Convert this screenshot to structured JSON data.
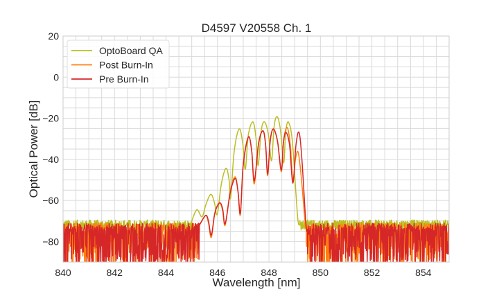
{
  "chart_data": {
    "type": "line",
    "title": "D4597 V20558 Ch. 1",
    "xlabel": "Wavelength [nm]",
    "ylabel": "Optical Power [dB]",
    "xlim": [
      840,
      855
    ],
    "ylim": [
      -90,
      20
    ],
    "xticks": [
      840,
      842,
      844,
      846,
      848,
      850,
      852,
      854
    ],
    "xtick_labels": [
      "840",
      "842",
      "844",
      "846",
      "848",
      "850",
      "852",
      "854"
    ],
    "yticks": [
      20,
      0,
      -20,
      -40,
      -60,
      -80
    ],
    "ytick_labels": [
      "20",
      "0",
      "−20",
      "−40",
      "−60",
      "−80"
    ],
    "minor_x_step": 0.5,
    "minor_y_step": 5,
    "grid": true,
    "legend_position": "top-left",
    "series": [
      {
        "name": "OptoBoard QA",
        "color": "#bcbd22",
        "noise_floor": {
          "level": -72,
          "spread": 2.5,
          "dip_prob": 0.03,
          "dip_depth": 8
        },
        "signal_range": [
          845.0,
          849.2
        ],
        "points": [
          [
            845.0,
            -70
          ],
          [
            845.2,
            -64.5
          ],
          [
            845.4,
            -68
          ],
          [
            845.55,
            -62
          ],
          [
            845.74,
            -57
          ],
          [
            845.88,
            -61
          ],
          [
            845.99,
            -66.8
          ],
          [
            846.15,
            -52
          ],
          [
            846.33,
            -44.3
          ],
          [
            846.45,
            -50
          ],
          [
            846.51,
            -58.9
          ],
          [
            846.65,
            -36
          ],
          [
            846.84,
            -25.2
          ],
          [
            846.98,
            -32
          ],
          [
            847.08,
            -44.9
          ],
          [
            847.2,
            -28
          ],
          [
            847.38,
            -21.8
          ],
          [
            847.5,
            -30
          ],
          [
            847.58,
            -43
          ],
          [
            847.7,
            -26
          ],
          [
            847.83,
            -21.8
          ],
          [
            847.98,
            -28
          ],
          [
            848.1,
            -40.7
          ],
          [
            848.2,
            -24
          ],
          [
            848.32,
            -19.2
          ],
          [
            848.45,
            -26
          ],
          [
            848.57,
            -41.8
          ],
          [
            848.65,
            -27
          ],
          [
            848.75,
            -21.8
          ],
          [
            848.9,
            -30
          ],
          [
            849.04,
            -55
          ],
          [
            849.13,
            -70
          ],
          [
            849.2,
            -72
          ]
        ]
      },
      {
        "name": "Post Burn-In",
        "color": "#ff7f0e",
        "noise_floor": {
          "level": -73,
          "spread": 2,
          "dip_prob": 0.55,
          "dip_depth": 20
        },
        "signal_range": [
          845.3,
          849.45
        ],
        "points": [
          [
            845.3,
            -72
          ],
          [
            845.54,
            -67.3
          ],
          [
            845.65,
            -71
          ],
          [
            845.76,
            -78
          ],
          [
            845.9,
            -66
          ],
          [
            846.08,
            -61.2
          ],
          [
            846.2,
            -65
          ],
          [
            846.3,
            -72
          ],
          [
            846.5,
            -55
          ],
          [
            846.69,
            -48.5
          ],
          [
            846.8,
            -56
          ],
          [
            846.89,
            -67
          ],
          [
            847.0,
            -42
          ],
          [
            847.2,
            -29.1
          ],
          [
            847.33,
            -36
          ],
          [
            847.43,
            -52
          ],
          [
            847.6,
            -32
          ],
          [
            847.77,
            -26.1
          ],
          [
            847.87,
            -33
          ],
          [
            847.95,
            -48
          ],
          [
            848.05,
            -31
          ],
          [
            848.17,
            -25.2
          ],
          [
            848.33,
            -31
          ],
          [
            848.48,
            -46
          ],
          [
            848.58,
            -30
          ],
          [
            848.71,
            -24.5
          ],
          [
            848.83,
            -33
          ],
          [
            848.93,
            -50
          ],
          [
            849.03,
            -40
          ],
          [
            849.13,
            -36.4
          ],
          [
            849.25,
            -48
          ],
          [
            849.4,
            -70
          ],
          [
            849.45,
            -74
          ]
        ]
      },
      {
        "name": "Pre Burn-In",
        "color": "#d62728",
        "noise_floor": {
          "level": -73,
          "spread": 2,
          "dip_prob": 0.6,
          "dip_depth": 20
        },
        "signal_range": [
          845.3,
          849.5
        ],
        "points": [
          [
            845.3,
            -72
          ],
          [
            845.54,
            -67.3
          ],
          [
            845.65,
            -70
          ],
          [
            845.76,
            -76.9
          ],
          [
            845.9,
            -66
          ],
          [
            846.08,
            -61.2
          ],
          [
            846.2,
            -64
          ],
          [
            846.3,
            -71.3
          ],
          [
            846.5,
            -56
          ],
          [
            846.69,
            -49.3
          ],
          [
            846.8,
            -56
          ],
          [
            846.89,
            -66.2
          ],
          [
            847.0,
            -43
          ],
          [
            847.2,
            -29.1
          ],
          [
            847.33,
            -36
          ],
          [
            847.43,
            -50.5
          ],
          [
            847.6,
            -32
          ],
          [
            847.77,
            -26.1
          ],
          [
            847.87,
            -33
          ],
          [
            847.95,
            -47.1
          ],
          [
            848.05,
            -31
          ],
          [
            848.17,
            -25.2
          ],
          [
            848.33,
            -31
          ],
          [
            848.48,
            -45.2
          ],
          [
            848.56,
            -32
          ],
          [
            848.66,
            -26.9
          ],
          [
            848.8,
            -33
          ],
          [
            848.93,
            -51.6
          ],
          [
            849.05,
            -33
          ],
          [
            849.17,
            -26.9
          ],
          [
            849.28,
            -40
          ],
          [
            849.44,
            -72
          ],
          [
            849.5,
            -74
          ]
        ]
      }
    ]
  }
}
